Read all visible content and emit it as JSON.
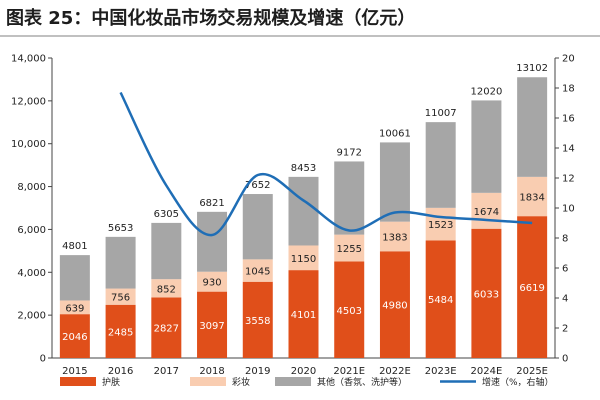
{
  "title": "图表 25：中国化妆品市场交易规模及增速（亿元）",
  "chart_data": {
    "type": "bar",
    "stacked": true,
    "categories": [
      "2015",
      "2016",
      "2017",
      "2018",
      "2019",
      "2020",
      "2021E",
      "2022E",
      "2023E",
      "2024E",
      "2025E"
    ],
    "series": [
      {
        "name": "护肤",
        "color": "#e04f1a",
        "axis": "left",
        "values": [
          2046,
          2485,
          2827,
          3097,
          3558,
          4101,
          4503,
          4980,
          5484,
          6033,
          6619
        ]
      },
      {
        "name": "彩妆",
        "color": "#f9cdb1",
        "axis": "left",
        "values": [
          639,
          756,
          852,
          930,
          1045,
          1150,
          1255,
          1383,
          1523,
          1674,
          1834
        ]
      },
      {
        "name": "其他（香氛、洗护等）",
        "color": "#a6a6a6",
        "axis": "left",
        "values": [
          2116,
          2412,
          2626,
          2794,
          3049,
          3202,
          3414,
          3698,
          4000,
          4313,
          4649
        ]
      }
    ],
    "totals": [
      4801,
      5653,
      6305,
      6821,
      7652,
      8453,
      9172,
      10061,
      11007,
      12020,
      13102
    ],
    "line": {
      "name": "增速（%，右轴）",
      "color": "#1f6eb6",
      "axis": "right",
      "values": [
        null,
        17.7,
        11.5,
        8.2,
        12.2,
        10.5,
        8.5,
        9.7,
        9.4,
        9.2,
        9.0
      ]
    },
    "ylim": [
      0,
      14000
    ],
    "yticks": [
      "0",
      "2,000",
      "4,000",
      "6,000",
      "8,000",
      "10,000",
      "12,000",
      "14,000"
    ],
    "y2lim": [
      0,
      20
    ],
    "y2ticks": [
      "0",
      "2",
      "4",
      "6",
      "8",
      "10",
      "12",
      "14",
      "16",
      "18",
      "20"
    ],
    "grid": false,
    "legend_position": "bottom"
  }
}
